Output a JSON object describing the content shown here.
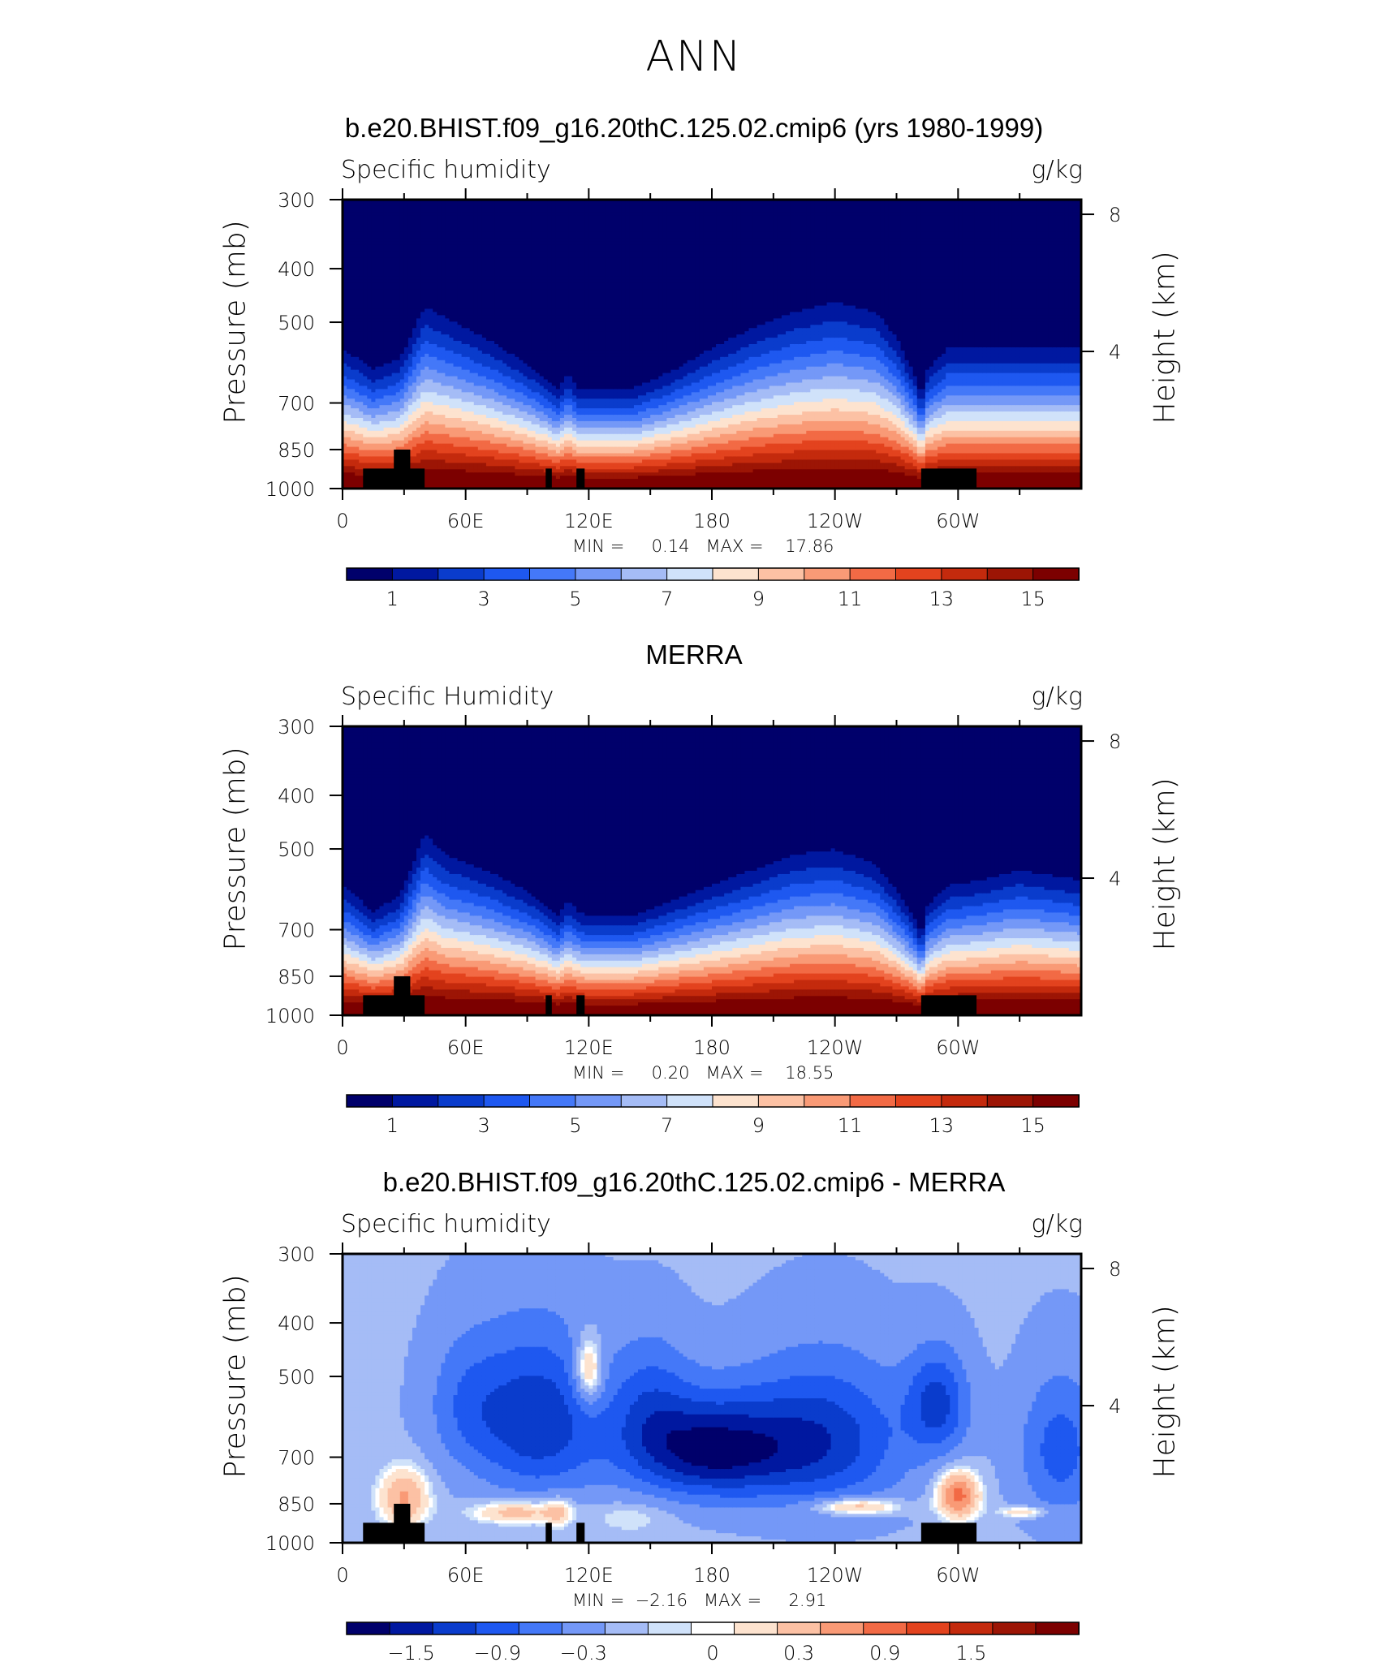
{
  "page": {
    "title": "ANN"
  },
  "panels": [
    {
      "title": "b.e20.BHIST.f09_g16.20thC.125.02.cmip6 (yrs 1980-1999)",
      "variable_label": "Specific humidity",
      "units_label": "g/kg",
      "left_axis_title": "Pressure (mb)",
      "right_axis_title": "Height (km)",
      "minmax": "MIN =     0.14   MAX =    17.86",
      "colorbar_labels": [
        "1",
        "3",
        "5",
        "7",
        "9",
        "11",
        "13",
        "15"
      ]
    },
    {
      "title": "MERRA",
      "variable_label": "Specific Humidity",
      "units_label": "g/kg",
      "left_axis_title": "Pressure (mb)",
      "right_axis_title": "Height (km)",
      "minmax": "MIN =     0.20   MAX =    18.55",
      "colorbar_labels": [
        "1",
        "3",
        "5",
        "7",
        "9",
        "11",
        "13",
        "15"
      ]
    },
    {
      "title": "b.e20.BHIST.f09_g16.20thC.125.02.cmip6 - MERRA",
      "variable_label": "Specific humidity",
      "units_label": "g/kg",
      "left_axis_title": "Pressure (mb)",
      "right_axis_title": "Height (km)",
      "minmax": "MIN =  −2.16   MAX =     2.91",
      "colorbar_labels": [
        "−1.5",
        "−0.9",
        "−0.3",
        "0",
        "0.3",
        "0.9",
        "1.5"
      ]
    }
  ],
  "axes": {
    "x_tick_labels": [
      "0",
      "60E",
      "120E",
      "180",
      "120W",
      "60W"
    ],
    "y_tick_labels": [
      "300",
      "400",
      "500",
      "700",
      "850",
      "1000"
    ],
    "height_tick_labels": [
      "8",
      "4"
    ]
  },
  "colors": {
    "abs_scale": [
      "#00006b",
      "#0018a0",
      "#0a3ccc",
      "#1e58f0",
      "#4478f8",
      "#7498f7",
      "#a5bcf6",
      "#d0e2fa",
      "#fde3cf",
      "#fcc1a4",
      "#f99a76",
      "#f26a45",
      "#e3431e",
      "#c42a0d",
      "#9c1505",
      "#7c0000"
    ],
    "diff_scale": [
      "#00006b",
      "#0018a0",
      "#0a3ccc",
      "#1e58f0",
      "#4478f8",
      "#7498f7",
      "#a5bcf6",
      "#d0e2fa",
      "#ffffff",
      "#fde3cf",
      "#fcc1a4",
      "#f99a76",
      "#f26a45",
      "#e3431e",
      "#c42a0d",
      "#9c1505",
      "#7c0000"
    ],
    "land_mask": "#000000"
  },
  "chart_data": [
    {
      "type": "heatmap",
      "title": "b.e20.BHIST.f09_g16.20thC.125.02.cmip6 (yrs 1980-1999)",
      "xlabel": "",
      "ylabel": "Pressure (mb)",
      "y2label": "Height (km)",
      "xlim": [
        0,
        360
      ],
      "ylim": [
        1000,
        300
      ],
      "y_scale": "log",
      "y_ticks": [
        300,
        400,
        500,
        700,
        850,
        1000
      ],
      "y2_ticks": [
        8,
        4
      ],
      "x_ticks": [
        0,
        60,
        120,
        180,
        240,
        300
      ],
      "levels": [
        1,
        2,
        3,
        4,
        5,
        6,
        7,
        8,
        9,
        10,
        11,
        12,
        13,
        14,
        15
      ],
      "min": 0.14,
      "max": 17.86,
      "profile_lon": [
        0,
        15,
        28,
        40,
        50,
        70,
        90,
        100,
        105,
        110,
        115,
        120,
        140,
        160,
        180,
        200,
        220,
        240,
        260,
        270,
        280,
        282,
        285,
        295,
        310,
        330,
        360
      ],
      "profile_q": [
        0.46,
        0.54,
        0.5,
        0.3,
        0.34,
        0.42,
        0.52,
        0.58,
        0.62,
        0.56,
        0.62,
        0.62,
        0.62,
        0.55,
        0.46,
        0.38,
        0.32,
        0.28,
        0.32,
        0.42,
        0.58,
        0.66,
        0.54,
        0.46,
        0.46,
        0.46,
        0.46
      ]
    },
    {
      "type": "heatmap",
      "title": "MERRA",
      "xlabel": "",
      "ylabel": "Pressure (mb)",
      "y2label": "Height (km)",
      "xlim": [
        0,
        360
      ],
      "ylim": [
        1000,
        300
      ],
      "y_scale": "log",
      "y_ticks": [
        300,
        400,
        500,
        700,
        850,
        1000
      ],
      "y2_ticks": [
        8,
        4
      ],
      "x_ticks": [
        0,
        60,
        120,
        180,
        240,
        300
      ],
      "levels": [
        1,
        2,
        3,
        4,
        5,
        6,
        7,
        8,
        9,
        10,
        11,
        12,
        13,
        14,
        15
      ],
      "min": 0.2,
      "max": 18.55,
      "profile_lon": [
        0,
        15,
        28,
        40,
        50,
        70,
        90,
        100,
        105,
        110,
        115,
        120,
        140,
        160,
        180,
        200,
        220,
        240,
        260,
        270,
        280,
        282,
        285,
        295,
        310,
        330,
        360
      ],
      "profile_q": [
        0.5,
        0.6,
        0.54,
        0.3,
        0.38,
        0.44,
        0.52,
        0.58,
        0.62,
        0.56,
        0.6,
        0.62,
        0.62,
        0.56,
        0.5,
        0.44,
        0.38,
        0.36,
        0.42,
        0.52,
        0.64,
        0.7,
        0.58,
        0.5,
        0.48,
        0.44,
        0.48
      ]
    },
    {
      "type": "heatmap",
      "title": "b.e20.BHIST.f09_g16.20thC.125.02.cmip6 - MERRA",
      "xlabel": "",
      "ylabel": "Pressure (mb)",
      "y2label": "Height (km)",
      "xlim": [
        0,
        360
      ],
      "ylim": [
        1000,
        300
      ],
      "y_scale": "log",
      "y_ticks": [
        300,
        400,
        500,
        700,
        850,
        1000
      ],
      "y2_ticks": [
        8,
        4
      ],
      "x_ticks": [
        0,
        60,
        120,
        180,
        240,
        300
      ],
      "levels": [
        -1.8,
        -1.5,
        -1.2,
        -0.9,
        -0.6,
        -0.3,
        -0.1,
        0,
        0.1,
        0.3,
        0.6,
        0.9,
        1.2,
        1.5,
        1.8
      ],
      "min": -2.16,
      "max": 2.91
    }
  ]
}
